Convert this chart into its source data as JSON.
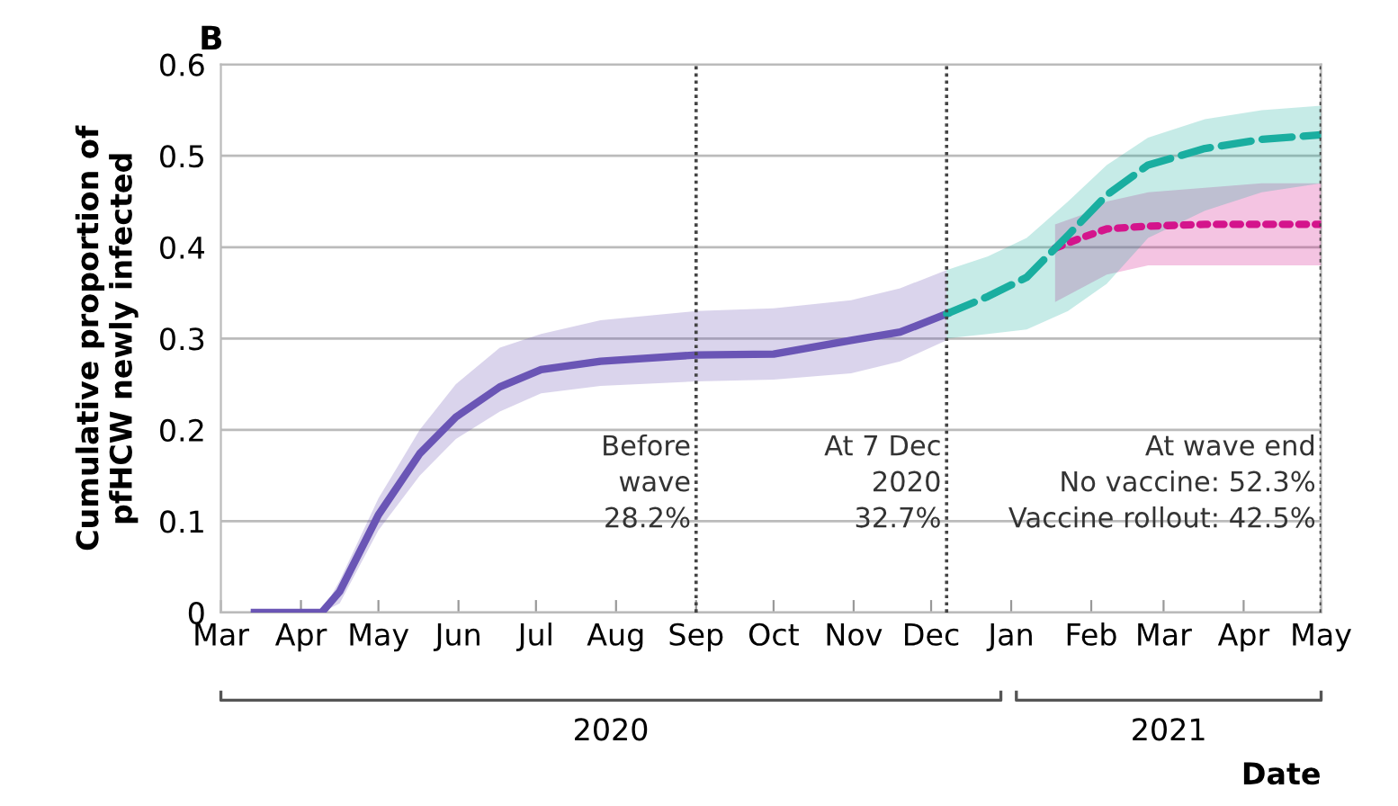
{
  "chart_data": {
    "type": "line",
    "title": "B",
    "xlabel": "Date",
    "ylabel": "Cumulative proportion of\npfHCW newly infected",
    "xlim": [
      "2020-03-01",
      "2021-05-01"
    ],
    "xticks": [
      {
        "value": "2020-03-01",
        "label": "Mar"
      },
      {
        "value": "2020-04-01",
        "label": "Apr"
      },
      {
        "value": "2020-05-01",
        "label": "May"
      },
      {
        "value": "2020-06-01",
        "label": "Jun"
      },
      {
        "value": "2020-07-01",
        "label": "Jul"
      },
      {
        "value": "2020-08-01",
        "label": "Aug"
      },
      {
        "value": "2020-09-01",
        "label": "Sep"
      },
      {
        "value": "2020-10-01",
        "label": "Oct"
      },
      {
        "value": "2020-11-01",
        "label": "Nov"
      },
      {
        "value": "2020-12-01",
        "label": "Dec"
      },
      {
        "value": "2021-01-01",
        "label": "Jan"
      },
      {
        "value": "2021-02-01",
        "label": "Feb"
      },
      {
        "value": "2021-03-01",
        "label": "Mar"
      },
      {
        "value": "2021-04-01",
        "label": "Apr"
      },
      {
        "value": "2021-05-01",
        "label": "May"
      }
    ],
    "ylim": [
      0,
      0.6
    ],
    "yticks": [
      0,
      0.1,
      0.2,
      0.3,
      0.4,
      0.5,
      0.6
    ],
    "grid": "y",
    "marker": "none",
    "series": [
      {
        "color": "#6a55b5",
        "line_style": "solid",
        "x": [
          "2020-03-14",
          "2020-04-09",
          "2020-04-16",
          "2020-05-01",
          "2020-05-17",
          "2020-05-31",
          "2020-06-17",
          "2020-07-03",
          "2020-07-26",
          "2020-09-01",
          "2020-10-01",
          "2020-10-31",
          "2020-11-19",
          "2020-12-07"
        ],
        "values": [
          0,
          0,
          0.023,
          0.107,
          0.174,
          0.214,
          0.247,
          0.266,
          0.275,
          0.282,
          0.283,
          0.298,
          0.307,
          0.327
        ],
        "lower": [
          0,
          0,
          0.01,
          0.09,
          0.15,
          0.19,
          0.22,
          0.24,
          0.248,
          0.253,
          0.255,
          0.262,
          0.275,
          0.298
        ],
        "upper": [
          0,
          0,
          0.035,
          0.125,
          0.2,
          0.25,
          0.29,
          0.305,
          0.32,
          0.33,
          0.333,
          0.342,
          0.355,
          0.375
        ]
      },
      {
        "color": "#d4148c",
        "line_style": "dotted",
        "x": [
          "2021-01-18",
          "2021-01-28",
          "2021-02-07",
          "2021-02-23",
          "2021-03-17",
          "2021-04-08",
          "2021-05-01"
        ],
        "values": [
          0.399,
          0.41,
          0.42,
          0.423,
          0.425,
          0.425,
          0.425
        ],
        "lower": [
          0.34,
          0.355,
          0.37,
          0.38,
          0.38,
          0.38,
          0.38
        ],
        "upper": [
          0.425,
          0.435,
          0.45,
          0.46,
          0.465,
          0.47,
          0.47
        ]
      },
      {
        "color": "#1aaea0",
        "line_style": "dashed",
        "x": [
          "2020-12-07",
          "2020-12-23",
          "2021-01-07",
          "2021-01-23",
          "2021-02-07",
          "2021-02-23",
          "2021-03-17",
          "2021-04-08",
          "2021-05-01"
        ],
        "values": [
          0.327,
          0.346,
          0.367,
          0.413,
          0.457,
          0.49,
          0.508,
          0.518,
          0.523
        ],
        "lower": [
          0.3,
          0.305,
          0.31,
          0.33,
          0.36,
          0.41,
          0.44,
          0.46,
          0.47
        ],
        "upper": [
          0.375,
          0.39,
          0.41,
          0.45,
          0.49,
          0.52,
          0.54,
          0.55,
          0.555
        ]
      }
    ],
    "ref_lines": [
      {
        "axis": "x",
        "value": "2020-09-01",
        "label": "Before\nwave\n28.2%",
        "color": "#444444",
        "line_style": "dotted"
      },
      {
        "axis": "x",
        "value": "2020-12-07",
        "label": "At 7 Dec\n2020\n32.7%",
        "color": "#444444",
        "line_style": "dotted"
      },
      {
        "axis": "x",
        "value": "2021-05-01",
        "label": "At wave end\nNo vaccine: 52.3%\nVaccine rollout: 42.5%",
        "color": "#444444",
        "line_style": "dotted"
      }
    ],
    "annotations": [
      "2020",
      "2021"
    ]
  }
}
